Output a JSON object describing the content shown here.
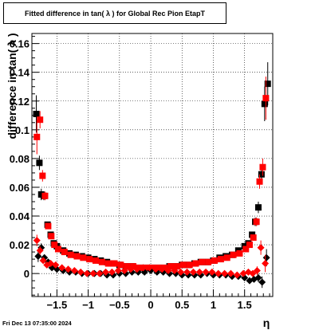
{
  "title": "Fitted difference in tan( λ ) for Global Rec Pion EtapT",
  "footer_text": "Fri Dec 13 07:35:00 2024",
  "chart_data": {
    "type": "scatter",
    "title": "Fitted difference in tan( λ ) for Global Rec Pion EtapT",
    "xlabel": "η",
    "ylabel": "difference in tan( λ )",
    "xlim": [
      -1.9,
      1.95
    ],
    "ylim": [
      -0.016,
      0.167
    ],
    "grid": true,
    "x_ticks": [
      -1.5,
      -1,
      -0.5,
      0,
      0.5,
      1,
      1.5
    ],
    "x_tick_labels": [
      "−1.5",
      "−1",
      "−0.5",
      "0",
      "0.5",
      "1",
      "1.5"
    ],
    "y_ticks": [
      0,
      0.02,
      0.04,
      0.06,
      0.08,
      0.1,
      0.12,
      0.14,
      0.16
    ],
    "y_tick_labels": [
      "0",
      "0.02",
      "0.04",
      "0.06",
      "0.08",
      "0.1",
      "0.12",
      "0.14",
      "0.16"
    ],
    "series": [
      {
        "marker": "square",
        "color": "#000000",
        "x": [
          -1.83,
          -1.78,
          -1.75,
          -1.71,
          -1.65,
          -1.6,
          -1.55,
          -1.5,
          -1.4,
          -1.3,
          -1.2,
          -1.1,
          -1.0,
          -0.9,
          -0.8,
          -0.7,
          -0.6,
          -0.5,
          -0.4,
          -0.3,
          -0.2,
          -0.1,
          0.0,
          0.1,
          0.2,
          0.3,
          0.4,
          0.5,
          0.6,
          0.7,
          0.8,
          0.9,
          1.0,
          1.1,
          1.2,
          1.3,
          1.4,
          1.5,
          1.56,
          1.62,
          1.67,
          1.72,
          1.77,
          1.82,
          1.87
        ],
        "y": [
          0.111,
          0.077,
          0.055,
          0.054,
          0.034,
          0.027,
          0.021,
          0.019,
          0.016,
          0.014,
          0.013,
          0.012,
          0.011,
          0.01,
          0.009,
          0.008,
          0.007,
          0.006,
          0.005,
          0.005,
          0.004,
          0.004,
          0.004,
          0.004,
          0.004,
          0.005,
          0.005,
          0.006,
          0.006,
          0.007,
          0.008,
          0.008,
          0.009,
          0.011,
          0.012,
          0.013,
          0.016,
          0.019,
          0.021,
          0.027,
          0.036,
          0.046,
          0.069,
          0.118,
          0.132
        ],
        "yerr": [
          0.013,
          0.005,
          0.004,
          0.003,
          0.002,
          0.002,
          0.002,
          0.001,
          0.001,
          0.001,
          0.001,
          0.001,
          0.001,
          0.001,
          0.001,
          0.001,
          0.001,
          0.001,
          0.001,
          0.001,
          0.001,
          0.001,
          0.001,
          0.001,
          0.001,
          0.001,
          0.001,
          0.001,
          0.001,
          0.001,
          0.001,
          0.001,
          0.001,
          0.001,
          0.001,
          0.001,
          0.001,
          0.001,
          0.002,
          0.002,
          0.003,
          0.004,
          0.006,
          0.012,
          0.015
        ]
      },
      {
        "marker": "square",
        "color": "#ff0000",
        "x": [
          -1.82,
          -1.77,
          -1.73,
          -1.69,
          -1.64,
          -1.59,
          -1.54,
          -1.48,
          -1.38,
          -1.28,
          -1.18,
          -1.08,
          -0.98,
          -0.88,
          -0.78,
          -0.68,
          -0.58,
          -0.48,
          -0.38,
          -0.28,
          -0.18,
          -0.08,
          0.02,
          0.12,
          0.22,
          0.32,
          0.42,
          0.52,
          0.62,
          0.72,
          0.82,
          0.92,
          1.02,
          1.12,
          1.22,
          1.32,
          1.42,
          1.52,
          1.58,
          1.64,
          1.69,
          1.74,
          1.79,
          1.84
        ],
        "y": [
          0.095,
          0.107,
          0.068,
          0.054,
          0.033,
          0.026,
          0.02,
          0.017,
          0.015,
          0.013,
          0.012,
          0.011,
          0.01,
          0.009,
          0.008,
          0.007,
          0.007,
          0.006,
          0.005,
          0.005,
          0.004,
          0.004,
          0.004,
          0.004,
          0.004,
          0.005,
          0.005,
          0.006,
          0.006,
          0.007,
          0.008,
          0.008,
          0.009,
          0.01,
          0.011,
          0.013,
          0.014,
          0.017,
          0.02,
          0.025,
          0.036,
          0.064,
          0.074,
          0.122
        ],
        "yerr": [
          0.012,
          0.006,
          0.004,
          0.003,
          0.002,
          0.002,
          0.002,
          0.001,
          0.001,
          0.001,
          0.001,
          0.001,
          0.001,
          0.001,
          0.001,
          0.001,
          0.001,
          0.001,
          0.001,
          0.001,
          0.001,
          0.001,
          0.001,
          0.001,
          0.001,
          0.001,
          0.001,
          0.001,
          0.001,
          0.001,
          0.001,
          0.001,
          0.001,
          0.001,
          0.001,
          0.001,
          0.001,
          0.001,
          0.002,
          0.002,
          0.003,
          0.005,
          0.006,
          0.015
        ]
      },
      {
        "marker": "diamond",
        "color": "#000000",
        "x": [
          -1.8,
          -1.75,
          -1.7,
          -1.64,
          -1.58,
          -1.5,
          -1.4,
          -1.3,
          -1.2,
          -1.1,
          -1.0,
          -0.9,
          -0.8,
          -0.7,
          -0.6,
          -0.5,
          -0.4,
          -0.3,
          -0.2,
          -0.1,
          0.0,
          0.1,
          0.2,
          0.3,
          0.4,
          0.5,
          0.6,
          0.7,
          0.8,
          0.9,
          1.0,
          1.1,
          1.2,
          1.3,
          1.4,
          1.5,
          1.58,
          1.65,
          1.72,
          1.78,
          1.85
        ],
        "y": [
          0.012,
          0.018,
          0.011,
          0.008,
          0.004,
          0.003,
          0.002,
          0.001,
          0.001,
          0.0,
          0.0,
          0.0,
          0.0,
          -0.001,
          -0.001,
          0.0,
          0.0,
          0.001,
          0.001,
          0.001,
          0.002,
          0.001,
          0.001,
          0.0,
          0.0,
          -0.001,
          -0.001,
          -0.001,
          -0.001,
          0.0,
          -0.001,
          -0.001,
          -0.001,
          -0.002,
          -0.002,
          -0.003,
          -0.005,
          -0.004,
          -0.003,
          -0.006,
          0.011
        ],
        "yerr": [
          0.004,
          0.003,
          0.002,
          0.002,
          0.001,
          0.001,
          0.001,
          0.001,
          0.001,
          0.001,
          0.001,
          0.001,
          0.001,
          0.001,
          0.001,
          0.001,
          0.001,
          0.001,
          0.001,
          0.001,
          0.001,
          0.001,
          0.001,
          0.001,
          0.001,
          0.001,
          0.001,
          0.001,
          0.001,
          0.001,
          0.001,
          0.001,
          0.001,
          0.001,
          0.001,
          0.001,
          0.001,
          0.002,
          0.003,
          0.004,
          0.006
        ]
      },
      {
        "marker": "diamond",
        "color": "#ff0000",
        "x": [
          -1.82,
          -1.77,
          -1.72,
          -1.66,
          -1.6,
          -1.52,
          -1.42,
          -1.32,
          -1.22,
          -1.12,
          -1.02,
          -0.92,
          -0.82,
          -0.72,
          -0.62,
          -0.52,
          -0.42,
          -0.32,
          -0.22,
          -0.12,
          -0.02,
          0.08,
          0.18,
          0.28,
          0.38,
          0.48,
          0.58,
          0.68,
          0.78,
          0.88,
          0.98,
          1.08,
          1.18,
          1.28,
          1.38,
          1.48,
          1.56,
          1.63,
          1.7,
          1.76,
          1.83
        ],
        "y": [
          0.023,
          0.016,
          0.009,
          0.006,
          0.007,
          0.006,
          0.004,
          0.003,
          0.002,
          0.001,
          0.0,
          0.0,
          0.0,
          0.001,
          0.001,
          0.002,
          0.002,
          0.003,
          0.003,
          0.004,
          0.004,
          0.003,
          0.003,
          0.002,
          0.002,
          0.001,
          0.001,
          0.001,
          0.001,
          0.001,
          0.001,
          0.0,
          0.0,
          0.0,
          -0.001,
          0.0,
          0.001,
          0.0,
          0.002,
          0.018,
          0.007
        ],
        "yerr": [
          0.004,
          0.003,
          0.002,
          0.002,
          0.001,
          0.001,
          0.001,
          0.001,
          0.001,
          0.001,
          0.001,
          0.001,
          0.001,
          0.001,
          0.001,
          0.001,
          0.001,
          0.001,
          0.001,
          0.001,
          0.001,
          0.001,
          0.001,
          0.001,
          0.001,
          0.001,
          0.001,
          0.001,
          0.001,
          0.001,
          0.001,
          0.001,
          0.001,
          0.001,
          0.001,
          0.001,
          0.001,
          0.002,
          0.003,
          0.005,
          0.006
        ]
      }
    ]
  }
}
